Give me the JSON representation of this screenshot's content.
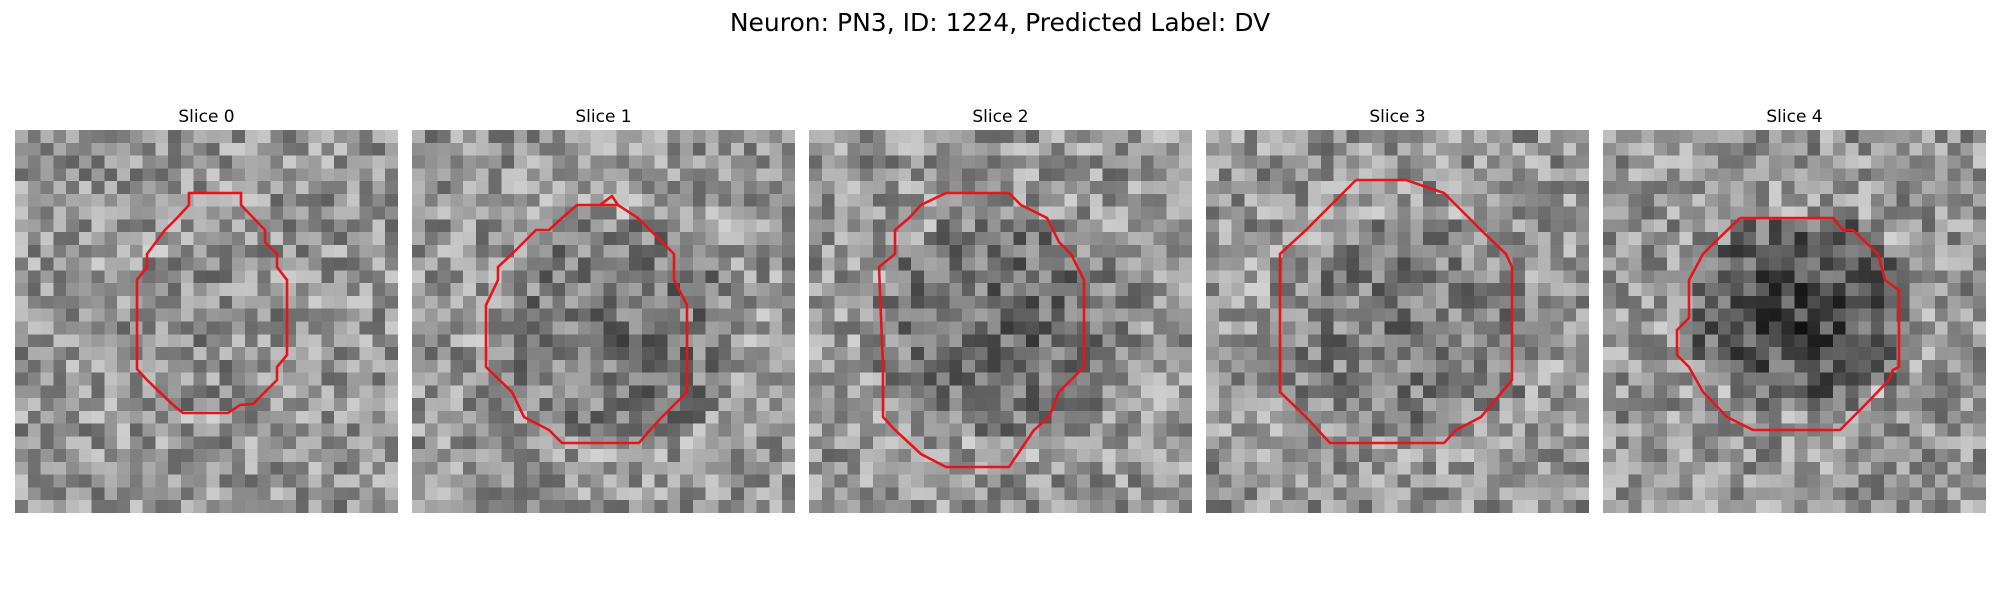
{
  "figure": {
    "title": "Neuron: PN3, ID: 1224, Predicted Label: DV",
    "contour_color": "#e8141c",
    "colormap": "grayscale",
    "grid_size": 30
  },
  "slices": [
    {
      "label": "Slice 0",
      "center": [
        15.5,
        12.5
      ],
      "radius": [
        6.0,
        9.0
      ],
      "darkness": 0.05
    },
    {
      "label": "Slice 1",
      "center": [
        15.0,
        16.0
      ],
      "radius": [
        9.0,
        10.0
      ],
      "darkness": 0.25
    },
    {
      "label": "Slice 2",
      "center": [
        15.0,
        15.0
      ],
      "radius": [
        9.0,
        11.0
      ],
      "darkness": 0.3
    },
    {
      "label": "Slice 3",
      "center": [
        15.0,
        15.0
      ],
      "radius": [
        9.0,
        11.0
      ],
      "darkness": 0.2
    },
    {
      "label": "Slice 4",
      "center": [
        14.0,
        15.0
      ],
      "radius": [
        8.0,
        9.0
      ],
      "darkness": 0.55
    }
  ]
}
